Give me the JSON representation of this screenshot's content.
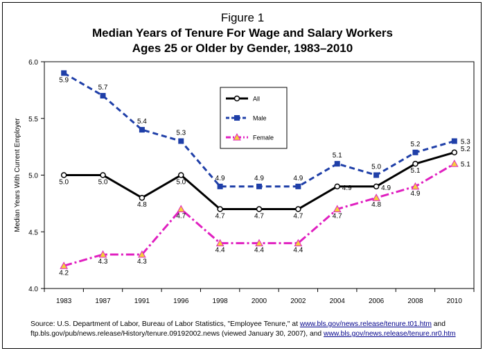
{
  "figure_label": "Figure 1",
  "title_line1": "Median Years of Tenure For Wage and Salary Workers",
  "title_line2": "Ages 25 or Older by Gender, 1983–2010",
  "source": {
    "prefix": "Source:  U.S. Department of Labor, Bureau of Labor Statistics, \"Employee Tenure,\" at ",
    "link1": "www.bls.gov/news.release/tenure.t01.htm",
    "mid": " and ftp.bls.gov/pub/news.release/History/tenure.09192002.news (viewed January 30, 2007), and ",
    "link2": "www.bls.gov/news.release/tenure.nr0.htm"
  },
  "chart_data": {
    "type": "line",
    "title": "Median Years of Tenure For Wage and Salary Workers Ages 25 or Older by Gender, 1983–2010",
    "xlabel": "",
    "ylabel": "Median Years With Current Employer",
    "ylim": [
      4.0,
      6.0
    ],
    "yticks": [
      "4.0",
      "4.5",
      "5.0",
      "5.5",
      "6.0"
    ],
    "categories": [
      "1983",
      "1987",
      "1991",
      "1996",
      "1998",
      "2000",
      "2002",
      "2004",
      "2006",
      "2008",
      "2010"
    ],
    "series": [
      {
        "name": "All",
        "color": "#000000",
        "values": [
          5.0,
          5.0,
          4.8,
          5.0,
          4.7,
          4.7,
          4.7,
          4.9,
          4.9,
          5.1,
          5.2
        ]
      },
      {
        "name": "Male",
        "color": "#1f3fa8",
        "values": [
          5.9,
          5.7,
          5.4,
          5.3,
          4.9,
          4.9,
          4.9,
          5.1,
          5.0,
          5.2,
          5.3
        ]
      },
      {
        "name": "Female",
        "color": "#e020c0",
        "values": [
          4.2,
          4.3,
          4.3,
          4.7,
          4.4,
          4.4,
          4.4,
          4.7,
          4.8,
          4.9,
          5.1
        ]
      }
    ],
    "legend": [
      "All",
      "Male",
      "Female"
    ],
    "grid": false
  }
}
